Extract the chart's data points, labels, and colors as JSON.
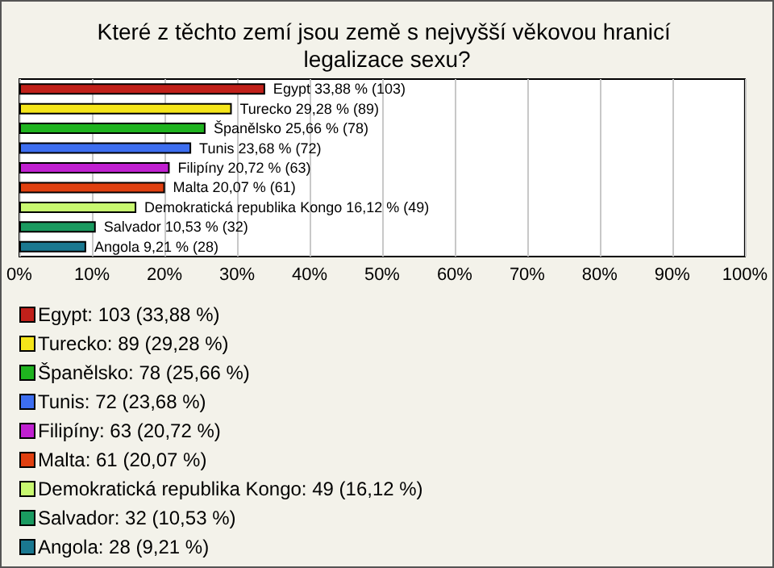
{
  "chart_data": {
    "type": "bar",
    "orientation": "horizontal",
    "title": "Které z těchto zemí jsou země s nejvyšší věkovou hranicí legalizace sexu?",
    "categories": [
      null,
      null,
      null,
      null,
      null,
      null,
      null,
      null,
      null
    ],
    "series": [
      {
        "name": "Egypt: 103 (33,88 %)",
        "color": "#c0201a",
        "values": [
          33.88,
          null,
          null,
          null,
          null,
          null,
          null,
          null,
          null
        ],
        "value_labels": [
          "Egypt 33,88 % (103)",
          null,
          null,
          null,
          null,
          null,
          null,
          null,
          null
        ]
      },
      {
        "name": "Turecko: 89 (29,28 %)",
        "color": "#f5e51a",
        "values": [
          null,
          29.28,
          null,
          null,
          null,
          null,
          null,
          null,
          null
        ],
        "value_labels": [
          null,
          "Turecko 29,28 % (89)",
          null,
          null,
          null,
          null,
          null,
          null,
          null
        ]
      },
      {
        "name": "Španělsko: 78 (25,66 %)",
        "color": "#1fb31f",
        "values": [
          null,
          null,
          25.66,
          null,
          null,
          null,
          null,
          null,
          null
        ],
        "value_labels": [
          null,
          null,
          "Španělsko 25,66 % (78)",
          null,
          null,
          null,
          null,
          null,
          null
        ]
      },
      {
        "name": "Tunis: 72 (23,68 %)",
        "color": "#3d6ef0",
        "values": [
          null,
          null,
          null,
          23.68,
          null,
          null,
          null,
          null,
          null
        ],
        "value_labels": [
          null,
          null,
          null,
          "Tunis 23,68 % (72)",
          null,
          null,
          null,
          null,
          null
        ]
      },
      {
        "name": "Filipíny: 63 (20,72 %)",
        "color": "#c020d0",
        "values": [
          null,
          null,
          null,
          null,
          20.72,
          null,
          null,
          null,
          null
        ],
        "value_labels": [
          null,
          null,
          null,
          null,
          "Filipíny 20,72 % (63)",
          null,
          null,
          null,
          null
        ]
      },
      {
        "name": "Malta: 61 (20,07 %)",
        "color": "#e04010",
        "values": [
          null,
          null,
          null,
          null,
          null,
          20.07,
          null,
          null,
          null
        ],
        "value_labels": [
          null,
          null,
          null,
          null,
          null,
          "Malta 20,07 % (61)",
          null,
          null,
          null
        ]
      },
      {
        "name": "Demokratická republika Kongo: 49 (16,12 %)",
        "color": "#c8f870",
        "values": [
          null,
          null,
          null,
          null,
          null,
          null,
          16.12,
          null,
          null
        ],
        "value_labels": [
          null,
          null,
          null,
          null,
          null,
          null,
          "Demokratická republika Kongo 16,12 % (49)",
          null,
          null
        ]
      },
      {
        "name": "Salvador: 32 (10,53 %)",
        "color": "#1a9a60",
        "values": [
          null,
          null,
          null,
          null,
          null,
          null,
          null,
          10.53,
          null
        ],
        "value_labels": [
          null,
          null,
          null,
          null,
          null,
          null,
          null,
          "Salvador 10,53 % (32)",
          null
        ]
      },
      {
        "name": "Angola: 28 (9,21 %)",
        "color": "#1a7890",
        "values": [
          null,
          null,
          null,
          null,
          null,
          null,
          null,
          null,
          9.21
        ],
        "value_labels": [
          null,
          null,
          null,
          null,
          null,
          null,
          null,
          null,
          "Angola 9,21 % (28)"
        ]
      }
    ],
    "xlim": [
      0,
      100
    ],
    "xticks": [
      {
        "value": 0,
        "label": "0%"
      },
      {
        "value": 10,
        "label": "10%"
      },
      {
        "value": 20,
        "label": "20%"
      },
      {
        "value": 30,
        "label": "30%"
      },
      {
        "value": 40,
        "label": "40%"
      },
      {
        "value": 50,
        "label": "50%"
      },
      {
        "value": 60,
        "label": "60%"
      },
      {
        "value": 70,
        "label": "70%"
      },
      {
        "value": 80,
        "label": "80%"
      },
      {
        "value": 90,
        "label": "90%"
      },
      {
        "value": 100,
        "label": "100%"
      }
    ],
    "grid": "x",
    "legend": "bottom"
  }
}
